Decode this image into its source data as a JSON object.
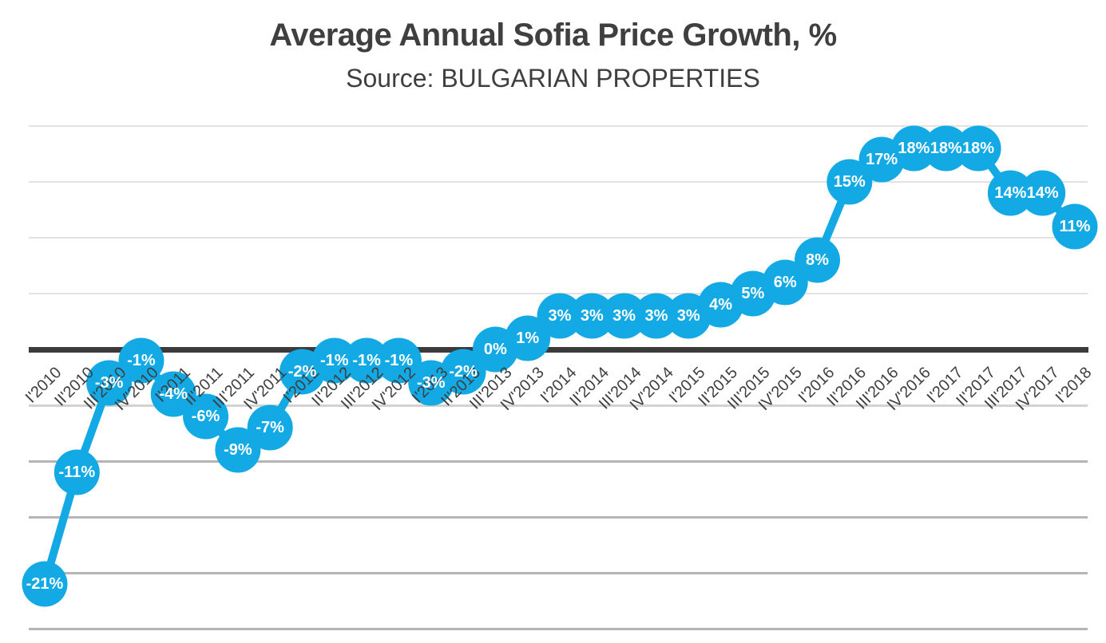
{
  "header": {
    "title": "Average Annual Sofia Price Growth, %",
    "subtitle": "Source: BULGARIAN PROPERTIES"
  },
  "chart_data": {
    "type": "line",
    "title": "Average Annual Sofia Price Growth, %",
    "subtitle": "Source: BULGARIAN PROPERTIES",
    "xlabel": "",
    "ylabel": "",
    "categories": [
      "I'2010",
      "II'2010",
      "III'2010",
      "IV'2010",
      "I'2011",
      "II'2011",
      "III'2011",
      "IV'2011",
      "I'2012",
      "II'2012",
      "III'2012",
      "IV'2012",
      "I'2013",
      "II'2013",
      "III'2013",
      "IV'2013",
      "I'2014",
      "II'2014",
      "III'2014",
      "IV'2014",
      "I'2015",
      "II'2015",
      "III'2015",
      "IV'2015",
      "I'2016",
      "II'2016",
      "III'2016",
      "IV'2016",
      "I'2017",
      "II'2017",
      "III'2017",
      "IV'2017",
      "I'2018"
    ],
    "values": [
      -21,
      -11,
      -3,
      -1,
      -4,
      -6,
      -9,
      -7,
      -2,
      -1,
      -1,
      -1,
      -3,
      -2,
      0,
      1,
      3,
      3,
      3,
      3,
      3,
      4,
      5,
      6,
      8,
      15,
      17,
      18,
      18,
      18,
      14,
      14,
      11
    ],
    "point_labels": [
      "-21%",
      "-11%",
      "-3%",
      "-1%",
      "-4%",
      "-6%",
      "-9%",
      "-7%",
      "-2%",
      "-1%",
      "-1%",
      "-1%",
      "-3%",
      "-2%",
      "0%",
      "1%",
      "3%",
      "3%",
      "3%",
      "3%",
      "3%",
      "4%",
      "5%",
      "6%",
      "8%",
      "15%",
      "17%",
      "18%",
      "18%",
      "18%",
      "14%",
      "14%",
      "11%"
    ],
    "ylim": [
      -26.5,
      21.5
    ],
    "grid_step": 5,
    "grid": "on",
    "legend": "none",
    "series_color": "#12a9e5",
    "point_label_color": "#ffffff",
    "axis_label_color": "#3f3f3f",
    "zero_line_color": "#3b3b3b",
    "gridline_color_light": "#e2e2e2",
    "gridline_color_dark": "#b5b5b5"
  }
}
